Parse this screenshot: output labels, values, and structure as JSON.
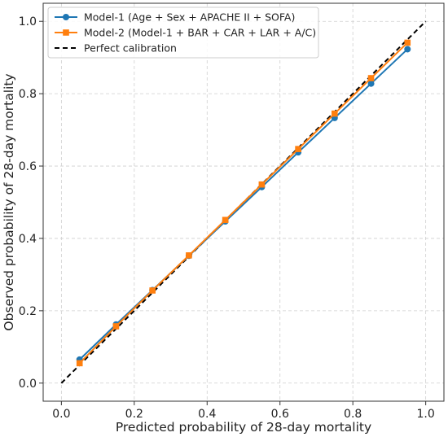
{
  "chart_data": {
    "type": "line",
    "title": "",
    "xlabel": "Predicted probability of 28-day mortality",
    "ylabel": "Observed probability of 28-day mortality",
    "xlim": [
      -0.05,
      1.05
    ],
    "ylim": [
      -0.05,
      1.05
    ],
    "xticks": [
      "0.0",
      "0.2",
      "0.4",
      "0.6",
      "0.8",
      "1.0"
    ],
    "yticks": [
      "0.0",
      "0.2",
      "0.4",
      "0.6",
      "0.8",
      "1.0"
    ],
    "grid": true,
    "legend_position": "top-left",
    "series": [
      {
        "name": "Model-1 (Age + Sex + APACHE II + SOFA)",
        "color": "#1f77b4",
        "marker": "circle",
        "x": [
          0.05,
          0.15,
          0.25,
          0.35,
          0.45,
          0.55,
          0.65,
          0.75,
          0.85,
          0.95
        ],
        "y": [
          0.065,
          0.162,
          0.257,
          0.352,
          0.447,
          0.542,
          0.638,
          0.733,
          0.828,
          0.923
        ]
      },
      {
        "name": "Model-2 (Model-1 + BAR + CAR + LAR + A/C)",
        "color": "#ff7f0e",
        "marker": "square",
        "x": [
          0.05,
          0.15,
          0.25,
          0.35,
          0.45,
          0.55,
          0.65,
          0.75,
          0.85,
          0.95
        ],
        "y": [
          0.055,
          0.157,
          0.256,
          0.353,
          0.451,
          0.549,
          0.647,
          0.745,
          0.843,
          0.941
        ]
      },
      {
        "name": "Perfect calibration",
        "color": "#000000",
        "style": "dashed",
        "x": [
          0.0,
          1.0
        ],
        "y": [
          0.0,
          1.0
        ]
      }
    ]
  }
}
